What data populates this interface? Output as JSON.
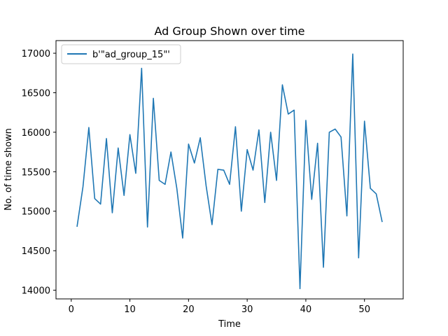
{
  "chart_data": {
    "type": "line",
    "title": "Ad Group Shown over time",
    "xlabel": "Time",
    "ylabel": "No. of time shown",
    "xlim": [
      -2.6,
      56.6
    ],
    "ylim": [
      13890,
      17160
    ],
    "xticks": [
      0,
      10,
      20,
      30,
      40,
      50
    ],
    "yticks": [
      14000,
      14500,
      15000,
      15500,
      16000,
      16500,
      17000
    ],
    "grid": false,
    "legend_position": "top-left",
    "series": [
      {
        "name": "b'\"ad_group_15\"'",
        "color": "#1f77b4",
        "x": [
          1,
          2,
          3,
          4,
          5,
          6,
          7,
          8,
          9,
          10,
          11,
          12,
          13,
          14,
          15,
          16,
          17,
          18,
          19,
          20,
          21,
          22,
          23,
          24,
          25,
          26,
          27,
          28,
          29,
          30,
          31,
          32,
          33,
          34,
          35,
          36,
          37,
          38,
          39,
          40,
          41,
          42,
          43,
          44,
          45,
          46,
          47,
          48,
          49,
          50,
          51,
          52,
          53
        ],
        "y": [
          14810,
          15310,
          16060,
          15160,
          15090,
          15920,
          14980,
          15800,
          15200,
          15970,
          15480,
          16810,
          14800,
          16430,
          15390,
          15340,
          15750,
          15290,
          14660,
          15850,
          15610,
          15930,
          15320,
          14830,
          15530,
          15520,
          15340,
          16070,
          15000,
          15780,
          15520,
          16030,
          15110,
          16000,
          15390,
          16600,
          16230,
          16280,
          14020,
          16150,
          15150,
          15860,
          14290,
          16000,
          16040,
          15940,
          14940,
          16990,
          14410,
          16140,
          15290,
          15220,
          14870
        ]
      }
    ]
  }
}
